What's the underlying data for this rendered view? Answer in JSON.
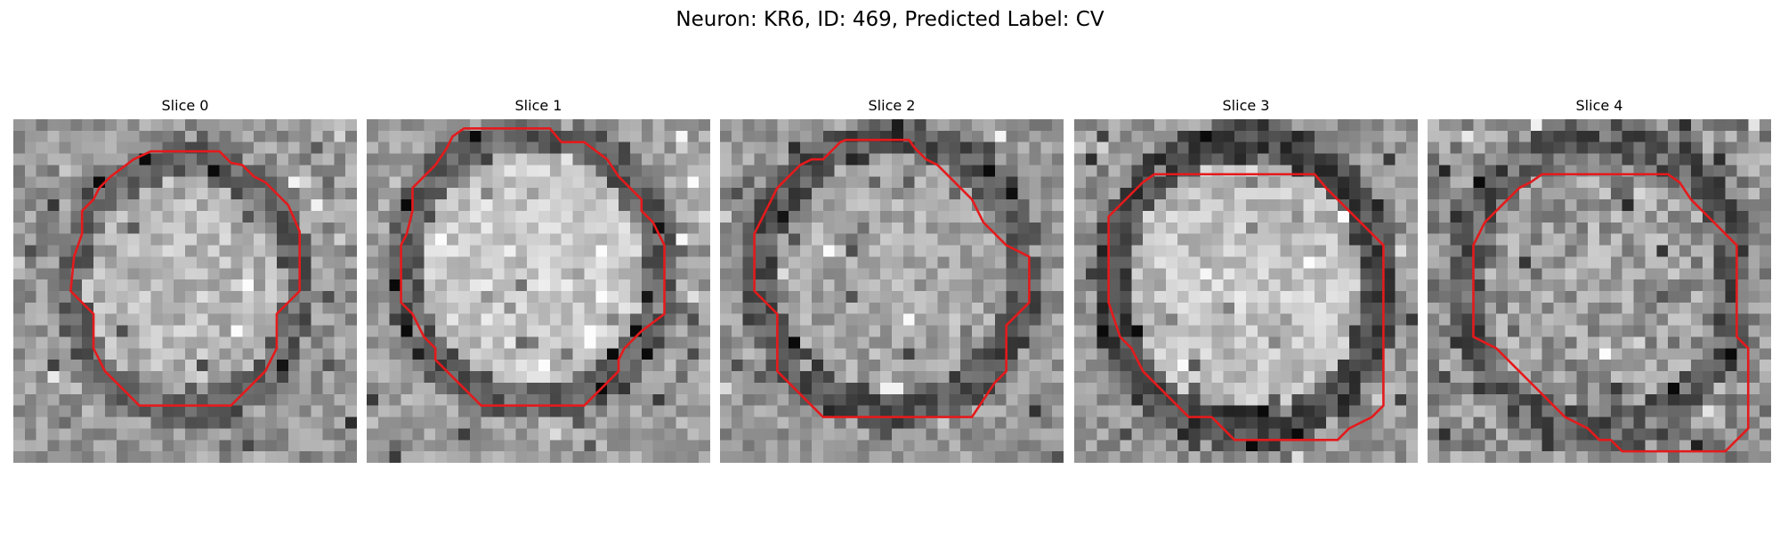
{
  "figure": {
    "title": "Neuron: KR6, ID: 469, Predicted Label: CV"
  },
  "panels": [
    {
      "title": "Slice 0"
    },
    {
      "title": "Slice 1"
    },
    {
      "title": "Slice 2"
    },
    {
      "title": "Slice 3"
    },
    {
      "title": "Slice 4"
    }
  ],
  "colors": {
    "contour": "#e41a1c",
    "colormap": "grayscale"
  }
}
